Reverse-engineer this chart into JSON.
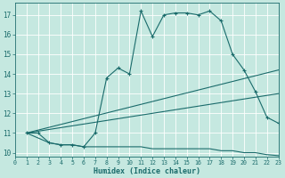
{
  "xlabel": "Humidex (Indice chaleur)",
  "xlim": [
    0,
    23
  ],
  "ylim": [
    9.8,
    17.6
  ],
  "yticks": [
    10,
    11,
    12,
    13,
    14,
    15,
    16,
    17
  ],
  "xticks": [
    0,
    1,
    2,
    3,
    4,
    5,
    6,
    7,
    8,
    9,
    10,
    11,
    12,
    13,
    14,
    15,
    16,
    17,
    18,
    19,
    20,
    21,
    22,
    23
  ],
  "bg_color": "#c5e8e0",
  "line_color": "#1a6b6b",
  "grid_color": "#ffffff",
  "series": [
    {
      "x": [
        1,
        2,
        3,
        4,
        5,
        6,
        7,
        8,
        9,
        10,
        11,
        12,
        13,
        14,
        15,
        16,
        17,
        18,
        19,
        20,
        21,
        22,
        23
      ],
      "y": [
        11,
        11,
        10.5,
        10.4,
        10.4,
        10.3,
        11.0,
        13.8,
        14.3,
        14.0,
        17.2,
        15.9,
        17.0,
        17.1,
        17.1,
        17.0,
        17.2,
        16.7,
        15.0,
        14.2,
        13.1,
        11.8,
        11.5
      ],
      "marker": true
    },
    {
      "x": [
        1,
        23
      ],
      "y": [
        11,
        14.2
      ],
      "marker": false
    },
    {
      "x": [
        1,
        23
      ],
      "y": [
        11,
        13.0
      ],
      "marker": false
    },
    {
      "x": [
        1,
        3,
        4,
        5,
        6,
        7,
        8,
        9,
        10,
        11,
        12,
        13,
        14,
        15,
        16,
        17,
        18,
        19,
        20,
        21,
        22,
        23
      ],
      "y": [
        11,
        10.5,
        10.4,
        10.4,
        10.3,
        10.3,
        10.3,
        10.3,
        10.3,
        10.3,
        10.2,
        10.2,
        10.2,
        10.2,
        10.2,
        10.2,
        10.1,
        10.1,
        10.0,
        10.0,
        9.9,
        9.85
      ],
      "marker": false
    }
  ]
}
